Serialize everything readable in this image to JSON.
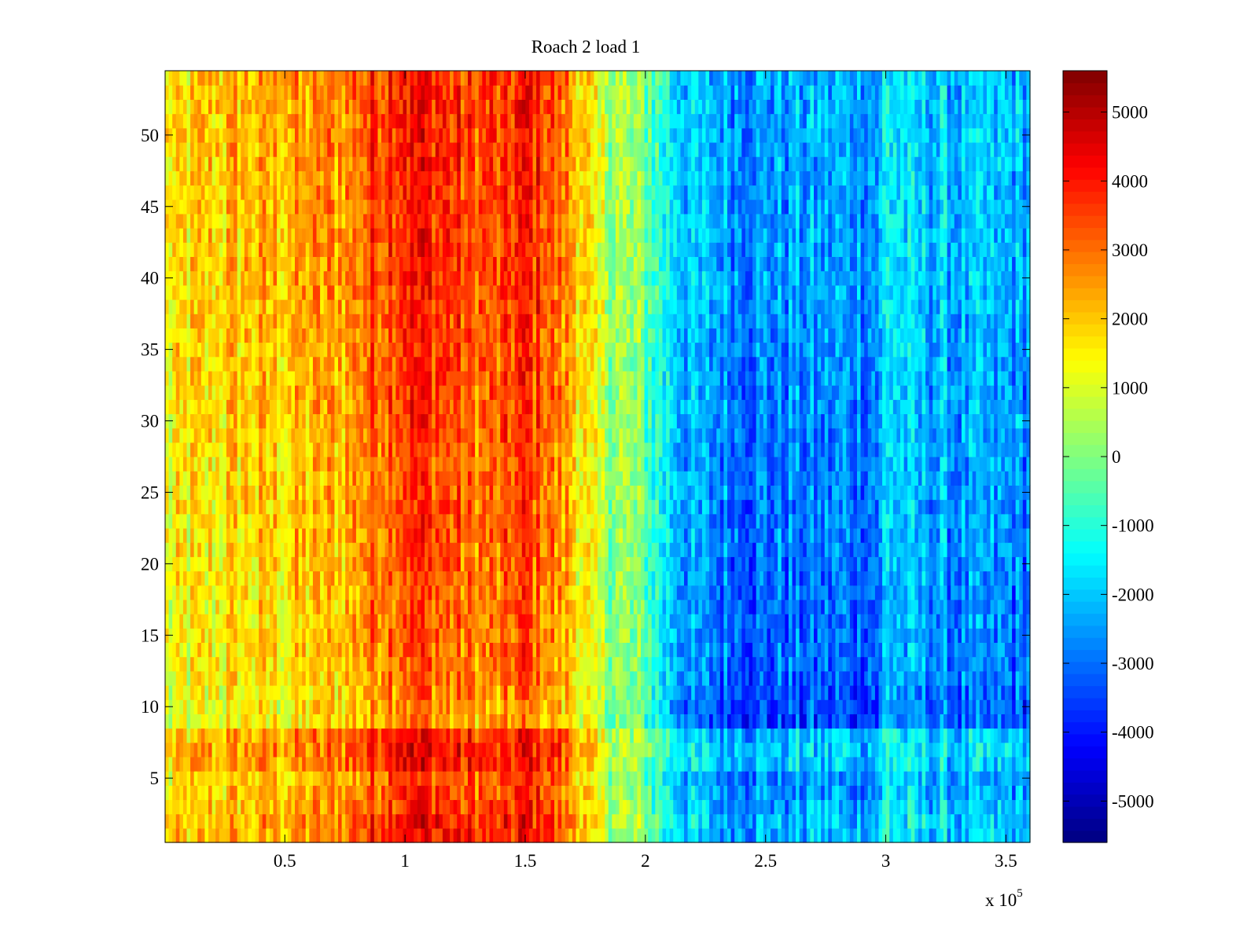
{
  "chart_data": {
    "type": "heatmap",
    "title": "Roach 2 load 1",
    "xlabel": "",
    "ylabel": "",
    "x_multiplier_label": "x 10",
    "x_multiplier_exponent": "5",
    "x_ticks": [
      "0.5",
      "1",
      "1.5",
      "2",
      "2.5",
      "3",
      "3.5"
    ],
    "x_tick_values": [
      0.5,
      1,
      1.5,
      2,
      2.5,
      3,
      3.5
    ],
    "xlim": [
      0.002,
      3.6
    ],
    "y_ticks": [
      "5",
      "10",
      "15",
      "20",
      "25",
      "30",
      "35",
      "40",
      "45",
      "50"
    ],
    "y_tick_values": [
      5,
      10,
      15,
      20,
      25,
      30,
      35,
      40,
      45,
      50
    ],
    "ylim": [
      0.5,
      54.5
    ],
    "colorbar": {
      "colormap": "jet",
      "range": [
        -5600,
        5600
      ],
      "ticks": [
        "5000",
        "4000",
        "3000",
        "2000",
        "1000",
        "0",
        "-1000",
        "-2000",
        "-3000",
        "-4000",
        "-5000"
      ],
      "tick_values": [
        5000,
        4000,
        3000,
        2000,
        1000,
        0,
        -1000,
        -2000,
        -3000,
        -4000,
        -5000
      ]
    },
    "grid": false,
    "profile": {
      "x": [
        0.0,
        0.3,
        0.5,
        0.75,
        0.9,
        1.0,
        1.1,
        1.25,
        1.4,
        1.5,
        1.58,
        1.7,
        1.8,
        2.0,
        2.1,
        2.2,
        2.4,
        2.6,
        2.8,
        2.98,
        3.0,
        3.1,
        3.3,
        3.6
      ],
      "values": [
        1200,
        1800,
        1900,
        2300,
        3200,
        3700,
        3600,
        3000,
        2900,
        3600,
        3100,
        2100,
        700,
        -300,
        -1700,
        -2500,
        -2900,
        -2900,
        -2800,
        -2800,
        -1600,
        -2300,
        -2600,
        -2700
      ]
    },
    "row_offsets": {
      "y": [
        1,
        2,
        3,
        4,
        5,
        6,
        7,
        8,
        9,
        10,
        11,
        12,
        14,
        18,
        22,
        26,
        30,
        35,
        40,
        45,
        50,
        54
      ],
      "values": [
        600,
        700,
        500,
        300,
        100,
        800,
        900,
        700,
        -700,
        -700,
        -500,
        -300,
        -200,
        -200,
        0,
        0,
        100,
        200,
        400,
        400,
        500,
        500
      ]
    }
  }
}
